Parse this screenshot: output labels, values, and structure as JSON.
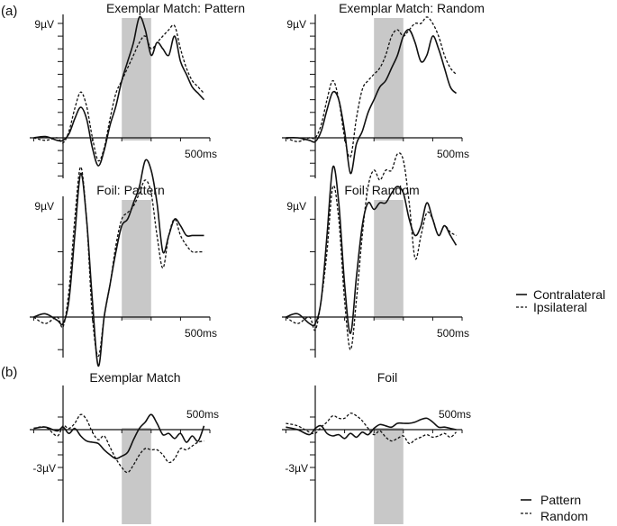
{
  "labels": {
    "a": "(a)",
    "b": "(b)"
  },
  "legends": {
    "a": [
      {
        "label": "Contralateral",
        "style": "solid"
      },
      {
        "label": "Ipsilateral",
        "style": "dashed"
      }
    ],
    "b": [
      {
        "label": "Pattern",
        "style": "solid"
      },
      {
        "label": "Random",
        "style": "dashed"
      }
    ]
  },
  "chart_data": [
    {
      "type": "line",
      "title": "Exemplar Match: Pattern",
      "ytop_label": "9µV",
      "xlabel_500": "500ms",
      "xlim": [
        -100,
        500
      ],
      "ylim": [
        -3,
        9
      ],
      "shaded_ms": [
        200,
        300
      ],
      "series": [
        {
          "name": "Contralateral",
          "style": "solid",
          "x": [
            -100,
            -60,
            -20,
            0,
            20,
            40,
            60,
            80,
            100,
            120,
            140,
            160,
            180,
            200,
            220,
            240,
            260,
            280,
            300,
            320,
            340,
            360,
            380,
            400,
            420,
            440,
            460,
            480
          ],
          "y": [
            0,
            0.1,
            -0.2,
            -0.2,
            0.3,
            1.5,
            2.4,
            1.5,
            -0.8,
            -2.2,
            -1.0,
            1.0,
            2.5,
            4.5,
            6.0,
            7.5,
            9.5,
            8.5,
            6.5,
            7.5,
            7.0,
            6.5,
            8.0,
            6.0,
            5.0,
            4.0,
            3.5,
            3.0
          ]
        },
        {
          "name": "Ipsilateral",
          "style": "dashed",
          "x": [
            -100,
            -60,
            -20,
            0,
            20,
            40,
            60,
            80,
            100,
            120,
            140,
            160,
            180,
            200,
            220,
            240,
            260,
            280,
            300,
            320,
            340,
            360,
            380,
            400,
            420,
            440,
            460,
            480
          ],
          "y": [
            0,
            -0.2,
            0,
            -0.4,
            0.5,
            2.3,
            3.6,
            2.5,
            0,
            -1.8,
            -0.8,
            1.5,
            3.5,
            4.5,
            5.5,
            6.5,
            7.5,
            8.0,
            7.0,
            7.5,
            8.0,
            8.5,
            8.8,
            7.0,
            5.5,
            4.5,
            4.0,
            3.5
          ]
        }
      ]
    },
    {
      "type": "line",
      "title": "Exemplar Match: Random",
      "ytop_label": "9µV",
      "xlabel_500": "500ms",
      "xlim": [
        -100,
        500
      ],
      "ylim": [
        -3,
        9
      ],
      "shaded_ms": [
        200,
        300
      ],
      "series": [
        {
          "name": "Contralateral",
          "style": "solid",
          "x": [
            -100,
            -60,
            -20,
            0,
            20,
            40,
            60,
            80,
            100,
            120,
            140,
            160,
            180,
            200,
            220,
            240,
            260,
            280,
            300,
            320,
            340,
            360,
            380,
            400,
            420,
            440,
            460,
            480
          ],
          "y": [
            0,
            0,
            -0.2,
            -0.3,
            0.5,
            2.2,
            3.6,
            3.0,
            0.5,
            -2.8,
            -0.5,
            0.5,
            2.0,
            3.0,
            4.0,
            4.5,
            5.5,
            6.5,
            8.0,
            8.5,
            7.5,
            6.0,
            6.5,
            8.0,
            7.0,
            5.5,
            4.0,
            3.5
          ]
        },
        {
          "name": "Ipsilateral",
          "style": "dashed",
          "x": [
            -100,
            -60,
            -20,
            0,
            20,
            40,
            60,
            80,
            100,
            120,
            140,
            160,
            180,
            200,
            220,
            240,
            260,
            280,
            300,
            320,
            340,
            360,
            380,
            400,
            420,
            440,
            460,
            480
          ],
          "y": [
            0,
            -0.3,
            0,
            0,
            1.0,
            3.0,
            4.5,
            3.0,
            0,
            -1.5,
            1.5,
            3.8,
            4.5,
            5.0,
            5.5,
            6.5,
            8.0,
            8.5,
            8.0,
            8.5,
            9.0,
            9.0,
            9.5,
            9.0,
            8.0,
            6.5,
            5.5,
            5.0
          ]
        }
      ]
    },
    {
      "type": "line",
      "title": "Foil: Pattern",
      "ytop_label": "9µV",
      "xlabel_500": "500ms",
      "xlim": [
        -100,
        500
      ],
      "ylim": [
        -3,
        9
      ],
      "shaded_ms": [
        200,
        300
      ],
      "series": [
        {
          "name": "Contralateral",
          "style": "solid",
          "x": [
            -100,
            -60,
            -20,
            0,
            20,
            40,
            60,
            80,
            100,
            120,
            140,
            160,
            180,
            200,
            220,
            240,
            260,
            280,
            300,
            320,
            340,
            360,
            380,
            400,
            420,
            440,
            460,
            480
          ],
          "y": [
            0,
            0.1,
            -0.1,
            -0.2,
            0.5,
            2.5,
            4.4,
            3.0,
            0.5,
            -1.5,
            0,
            1.0,
            2.0,
            2.8,
            3.0,
            3.5,
            4.0,
            4.8,
            4.5,
            3.5,
            2.0,
            2.5,
            3.0,
            2.8,
            2.5,
            2.5,
            2.5,
            2.5
          ]
        },
        {
          "name": "Ipsilateral",
          "style": "dashed",
          "x": [
            -100,
            -60,
            -20,
            0,
            20,
            40,
            60,
            80,
            100,
            120,
            140,
            160,
            180,
            200,
            220,
            240,
            260,
            280,
            300,
            320,
            340,
            360,
            380,
            400,
            420,
            440,
            460,
            480
          ],
          "y": [
            0,
            -0.2,
            0,
            -0.3,
            0.8,
            3.0,
            4.6,
            3.0,
            0,
            -1.2,
            0,
            1.0,
            2.2,
            3.0,
            3.2,
            3.4,
            3.8,
            4.2,
            3.8,
            2.5,
            1.5,
            2.5,
            3.0,
            2.5,
            2.2,
            2.0,
            2.0,
            2.0
          ]
        }
      ]
    },
    {
      "type": "line",
      "title": "Foil: Random",
      "ytop_label": "9µV",
      "xlabel_500": "500ms",
      "xlim": [
        -100,
        500
      ],
      "ylim": [
        -3,
        9
      ],
      "shaded_ms": [
        200,
        300
      ],
      "series": [
        {
          "name": "Contralateral",
          "style": "solid",
          "x": [
            -100,
            -60,
            -20,
            0,
            20,
            40,
            60,
            80,
            100,
            120,
            140,
            160,
            180,
            200,
            220,
            240,
            260,
            280,
            300,
            320,
            340,
            360,
            380,
            400,
            420,
            440,
            460,
            480
          ],
          "y": [
            0,
            0.1,
            -0.2,
            -0.2,
            0.5,
            2.5,
            4.6,
            3.5,
            1.0,
            -0.5,
            1.2,
            2.8,
            3.5,
            3.3,
            3.5,
            3.5,
            3.8,
            4.0,
            3.8,
            3.0,
            2.5,
            2.8,
            3.5,
            3.0,
            2.5,
            2.8,
            2.5,
            2.2
          ]
        },
        {
          "name": "Ipsilateral",
          "style": "dashed",
          "x": [
            -100,
            -60,
            -20,
            0,
            20,
            40,
            60,
            80,
            100,
            120,
            140,
            160,
            180,
            200,
            220,
            240,
            260,
            280,
            300,
            320,
            340,
            360,
            380,
            400,
            420,
            440,
            460,
            480
          ],
          "y": [
            0,
            -0.2,
            0,
            -0.4,
            0.5,
            2.0,
            4.0,
            3.0,
            0.5,
            -1.0,
            0.5,
            2.5,
            4.0,
            4.5,
            4.2,
            4.5,
            4.5,
            5.0,
            4.8,
            3.5,
            1.8,
            2.5,
            3.2,
            3.0,
            2.5,
            2.8,
            2.6,
            2.5
          ]
        }
      ]
    },
    {
      "type": "line",
      "title": "Exemplar Match",
      "ybottom_label": "-3µV",
      "xlabel_500": "500ms",
      "xlim": [
        -100,
        500
      ],
      "ylim": [
        -4,
        1.5
      ],
      "shaded_ms": [
        200,
        300
      ],
      "series": [
        {
          "name": "Pattern",
          "style": "solid",
          "x": [
            -100,
            -60,
            -20,
            0,
            20,
            40,
            60,
            80,
            100,
            120,
            140,
            160,
            180,
            200,
            220,
            240,
            260,
            280,
            300,
            320,
            340,
            360,
            380,
            400,
            420,
            440,
            460,
            480
          ],
          "y": [
            0.1,
            0.2,
            -0.1,
            0.2,
            -0.3,
            0.1,
            -0.5,
            -0.9,
            -1.0,
            -1.1,
            -1.6,
            -2.0,
            -2.3,
            -2.1,
            -1.8,
            -0.8,
            0.1,
            0.6,
            1.2,
            0.5,
            -0.4,
            -0.3,
            -0.7,
            -0.3,
            -1.0,
            -0.5,
            -0.9,
            0.3
          ]
        },
        {
          "name": "Random",
          "style": "dashed",
          "x": [
            -100,
            -60,
            -20,
            0,
            20,
            40,
            60,
            80,
            100,
            120,
            140,
            160,
            180,
            200,
            220,
            240,
            260,
            280,
            300,
            320,
            340,
            360,
            380,
            400,
            420,
            440,
            460,
            480
          ],
          "y": [
            0.1,
            0.2,
            -0.5,
            0.3,
            0.1,
            0.5,
            1.2,
            0.8,
            -0.2,
            -0.8,
            -0.5,
            -1.4,
            -2.3,
            -3.0,
            -3.4,
            -2.8,
            -2.0,
            -1.5,
            -1.6,
            -1.6,
            -2.0,
            -2.6,
            -2.3,
            -1.5,
            -1.6,
            -1.3,
            -1.0,
            -0.9
          ]
        }
      ]
    },
    {
      "type": "line",
      "title": "Foil",
      "ybottom_label": "-3µV",
      "xlabel_500": "500ms",
      "xlim": [
        -100,
        500
      ],
      "ylim": [
        -4,
        1.5
      ],
      "shaded_ms": [
        200,
        300
      ],
      "series": [
        {
          "name": "Pattern",
          "style": "solid",
          "x": [
            -100,
            -60,
            -20,
            0,
            20,
            40,
            60,
            80,
            100,
            120,
            140,
            160,
            180,
            200,
            220,
            240,
            260,
            280,
            300,
            320,
            340,
            360,
            380,
            400,
            420,
            440,
            460,
            480
          ],
          "y": [
            0.2,
            0,
            -0.4,
            0.1,
            0.3,
            -0.3,
            -0.5,
            -0.4,
            -0.7,
            -0.3,
            -0.6,
            -0.2,
            -0.4,
            0.1,
            0.4,
            0.3,
            0.2,
            0.5,
            0.5,
            0.5,
            0.6,
            0.8,
            0.9,
            0.6,
            0.2,
            0.2,
            0.1,
            0
          ]
        },
        {
          "name": "Random",
          "style": "dashed",
          "x": [
            -100,
            -60,
            -20,
            0,
            20,
            40,
            60,
            80,
            100,
            120,
            140,
            160,
            180,
            200,
            220,
            240,
            260,
            280,
            300,
            320,
            340,
            360,
            380,
            400,
            420,
            440,
            460,
            480
          ],
          "y": [
            0.5,
            0.3,
            -0.2,
            -0.3,
            0.2,
            0.6,
            1.1,
            0.9,
            0.9,
            1.3,
            1.1,
            0.7,
            0.1,
            -0.4,
            -0.1,
            -0.6,
            -0.9,
            -0.7,
            -0.5,
            -1.1,
            -0.8,
            -0.6,
            -0.4,
            -0.6,
            -0.5,
            -0.3,
            -0.6,
            -0.2
          ]
        }
      ]
    }
  ]
}
